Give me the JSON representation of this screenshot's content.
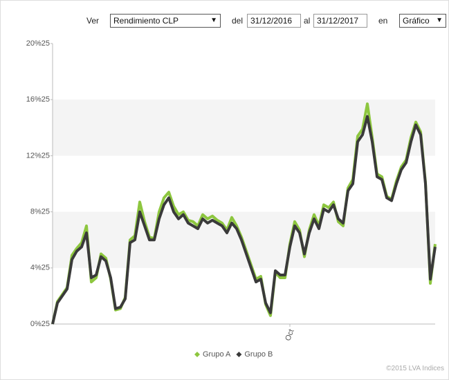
{
  "controls": {
    "ver_label": "Ver",
    "measure": "Rendimiento CLP",
    "from_label": "del",
    "from_date": "31/12/2016",
    "to_label": "al",
    "to_date": "31/12/2017",
    "view_label": "en",
    "view": "Gráfico"
  },
  "credit": "©2015 LVA Indices",
  "chart_data": {
    "type": "line",
    "categories": [
      null,
      null,
      null,
      null,
      null,
      null,
      null,
      null,
      null,
      null,
      null,
      null,
      null,
      null,
      null,
      null,
      null,
      null,
      null,
      null,
      null,
      null,
      null,
      null,
      null,
      null,
      null,
      null,
      null,
      null,
      null,
      null,
      null,
      null,
      null,
      null,
      null,
      null,
      null,
      null,
      null,
      null,
      null,
      null,
      null,
      null,
      null,
      null,
      null,
      "Oct",
      null,
      null,
      null,
      null,
      null,
      null,
      null,
      null,
      null,
      null,
      null,
      null,
      null,
      null,
      null,
      null,
      null,
      null,
      null,
      null,
      null,
      null,
      null,
      null,
      null,
      null,
      null,
      null,
      null,
      null
    ],
    "series": [
      {
        "name": "Grupo A",
        "color": "#8dc63f",
        "values": [
          0,
          1.6,
          2.1,
          2.6,
          4.9,
          5.4,
          5.8,
          7.0,
          3.0,
          3.3,
          5.0,
          4.7,
          3.2,
          1.0,
          1.1,
          1.9,
          6.0,
          6.3,
          8.7,
          7.3,
          6.2,
          6.1,
          8.0,
          9.0,
          9.4,
          8.4,
          7.8,
          8.0,
          7.4,
          7.3,
          7.0,
          7.8,
          7.5,
          7.7,
          7.4,
          7.2,
          6.7,
          7.6,
          7.0,
          6.2,
          5.2,
          4.2,
          3.2,
          3.4,
          1.4,
          0.6,
          3.7,
          3.3,
          3.3,
          5.7,
          7.3,
          6.7,
          4.8,
          6.7,
          7.8,
          7.0,
          8.5,
          8.3,
          8.7,
          7.3,
          7.0,
          9.7,
          10.3,
          13.4,
          13.9,
          15.7,
          13.3,
          10.7,
          10.5,
          9.1,
          8.9,
          10.2,
          11.2,
          11.7,
          13.3,
          14.4,
          13.7,
          10.1,
          2.9,
          5.7
        ]
      },
      {
        "name": "Grupo B",
        "color": "#3a3a3a",
        "values": [
          0,
          1.5,
          2.0,
          2.5,
          4.6,
          5.2,
          5.5,
          6.5,
          3.3,
          3.5,
          4.8,
          4.5,
          3.3,
          1.1,
          1.2,
          1.8,
          5.8,
          6.0,
          8.0,
          7.0,
          6.0,
          6.0,
          7.5,
          8.5,
          9.0,
          8.0,
          7.5,
          7.8,
          7.2,
          7.0,
          6.8,
          7.5,
          7.2,
          7.4,
          7.2,
          7.0,
          6.5,
          7.2,
          6.8,
          6.0,
          5.0,
          4.0,
          3.0,
          3.2,
          1.5,
          0.8,
          3.8,
          3.5,
          3.5,
          5.5,
          7.0,
          6.5,
          5.0,
          6.5,
          7.5,
          6.8,
          8.2,
          8.0,
          8.5,
          7.5,
          7.2,
          9.5,
          10.0,
          13.0,
          13.5,
          14.8,
          13.0,
          10.5,
          10.3,
          9.0,
          8.8,
          10.0,
          11.0,
          11.5,
          13.0,
          14.2,
          13.5,
          10.0,
          3.2,
          5.5
        ]
      }
    ],
    "ylim": [
      0,
      20
    ],
    "yticks": [
      {
        "value": 0,
        "label": "0%25"
      },
      {
        "value": 4,
        "label": "4%25"
      },
      {
        "value": 8,
        "label": "8%25"
      },
      {
        "value": 12,
        "label": "12%25"
      },
      {
        "value": 16,
        "label": "16%25"
      },
      {
        "value": 20,
        "label": "20%25"
      }
    ],
    "banded_grid": true,
    "legend": "bottom"
  }
}
